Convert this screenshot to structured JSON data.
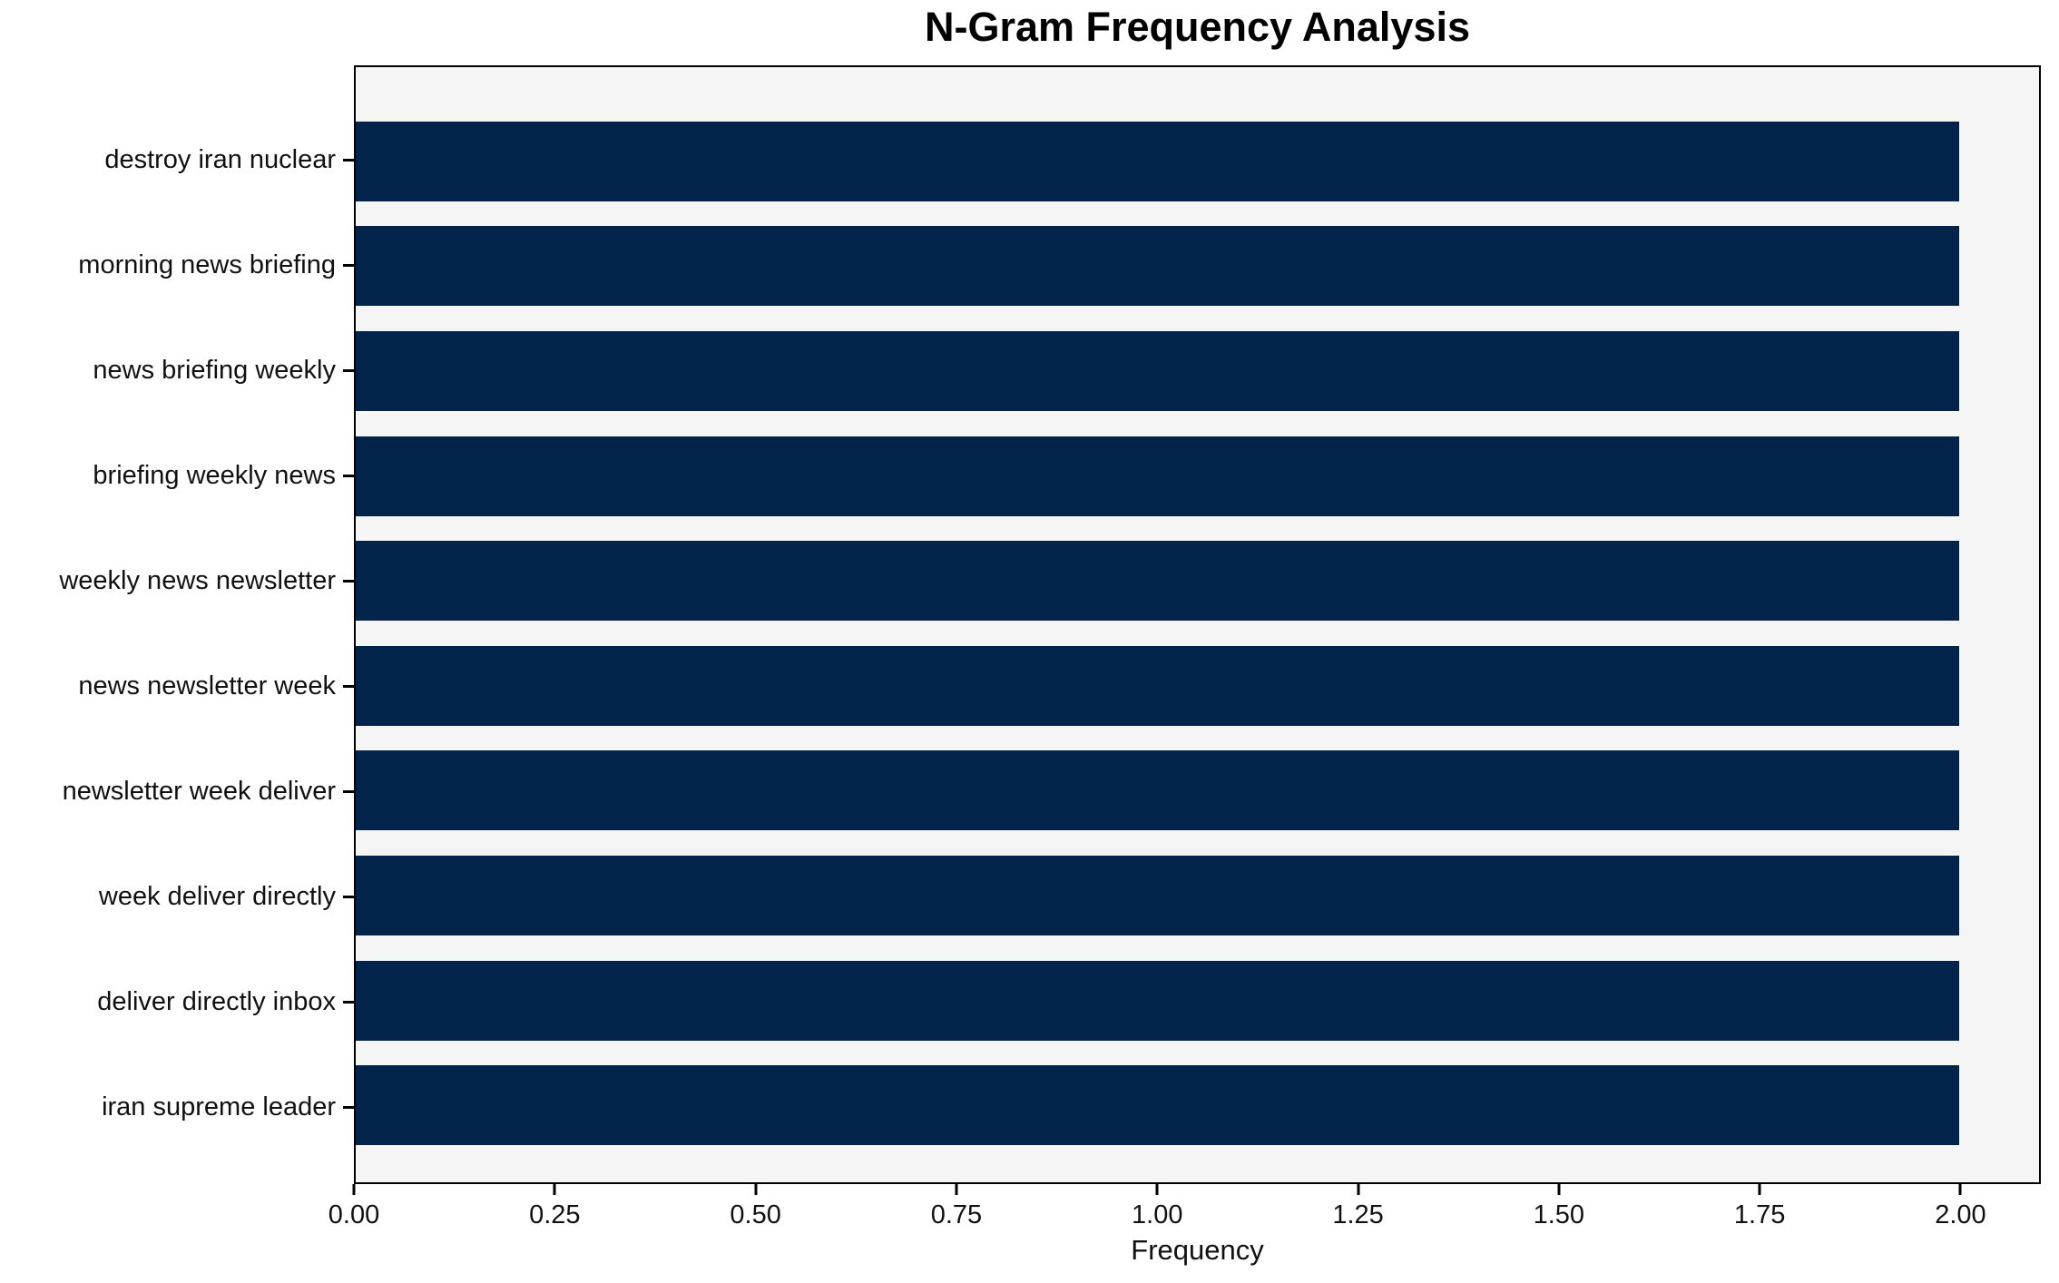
{
  "chart_data": {
    "type": "bar",
    "orientation": "horizontal",
    "title": "N-Gram Frequency Analysis",
    "xlabel": "Frequency",
    "ylabel": "",
    "categories": [
      "destroy iran nuclear",
      "morning news briefing",
      "news briefing weekly",
      "briefing weekly news",
      "weekly news newsletter",
      "news newsletter week",
      "newsletter week deliver",
      "week deliver directly",
      "deliver directly inbox",
      "iran supreme leader"
    ],
    "values": [
      2,
      2,
      2,
      2,
      2,
      2,
      2,
      2,
      2,
      2
    ],
    "xlim": [
      0,
      2.1
    ],
    "xticks": [
      "0.00",
      "0.25",
      "0.50",
      "0.75",
      "1.00",
      "1.25",
      "1.50",
      "1.75",
      "2.00"
    ],
    "grid": false,
    "legend": false,
    "colors": {
      "bar": "#02234a",
      "plot_background": "#f5f5f5",
      "figure_background": "#ffffff",
      "spine": "#000000",
      "text": "#111111"
    }
  }
}
